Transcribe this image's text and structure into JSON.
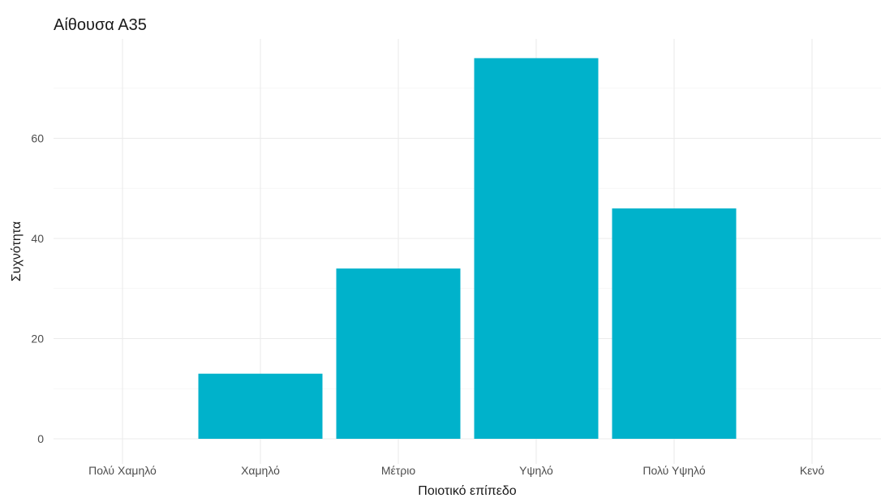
{
  "chart_data": {
    "type": "bar",
    "title": "Αίθουσα Α35",
    "xlabel": "Ποιοτικό επίπεδο",
    "ylabel": "Συχνότητα",
    "categories": [
      "Πολύ Χαμηλό",
      "Χαμηλό",
      "Μέτριο",
      "Υψηλό",
      "Πολύ Υψηλό",
      "Κενό"
    ],
    "values": [
      0,
      13,
      34,
      76,
      46,
      0
    ],
    "ylim": [
      0,
      79.8
    ],
    "yticks": [
      0,
      20,
      40,
      60
    ],
    "bar_color": "#00B2CB",
    "grid": true,
    "legend": "none"
  }
}
